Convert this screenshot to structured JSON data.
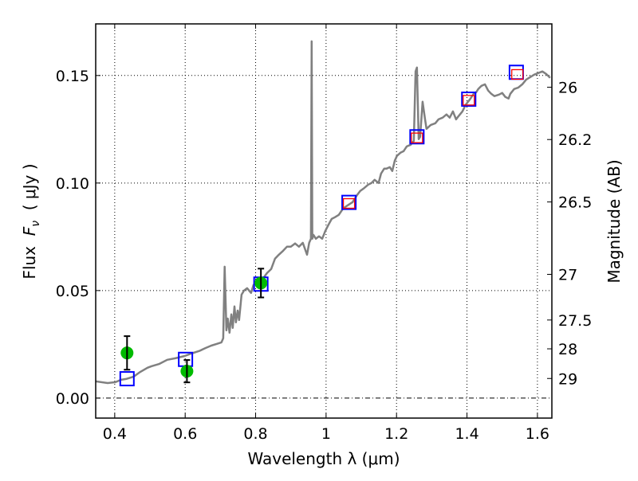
{
  "chart_data": {
    "type": "line",
    "xlabel": "Wavelength  λ (μm)",
    "ylabel": "Flux  F_ν  ( μJy )",
    "ylabel_parts": {
      "pre": "Flux  ",
      "var": "F",
      "sub": "ν",
      "post": "  ( μJy )"
    },
    "ylabel_right": "Magnitude (AB)",
    "xlim": [
      0.346,
      1.641
    ],
    "ylim": [
      -0.0093,
      0.174
    ],
    "grid": true,
    "xticks": [
      0.4,
      0.6,
      0.8,
      1.0,
      1.2,
      1.4,
      1.6
    ],
    "xtick_labels": [
      "0.4",
      "0.6",
      "0.8",
      "1",
      "1.2",
      "1.4",
      "1.6"
    ],
    "yticks": [
      0.0,
      0.05,
      0.1,
      0.15
    ],
    "ytick_labels": [
      "0.00",
      "0.05",
      "0.10",
      "0.15"
    ],
    "right_ticks_mag": [
      26,
      26.2,
      26.5,
      27,
      27.5,
      28,
      29
    ],
    "right_tick_labels": [
      "26",
      "26.2",
      "26.5",
      "27",
      "27.5",
      "28",
      "29"
    ],
    "colors": {
      "spectrum": "#808080",
      "model": "#0000ff",
      "model_inner": "#ff0000",
      "observed": "#00bb00",
      "errorbar": "#000000"
    },
    "series": [
      {
        "name": "spectrum",
        "kind": "line",
        "x": [
          0.346,
          0.38,
          0.402,
          0.418,
          0.432,
          0.454,
          0.47,
          0.493,
          0.504,
          0.527,
          0.549,
          0.572,
          0.599,
          0.617,
          0.64,
          0.658,
          0.674,
          0.69,
          0.703,
          0.708,
          0.712,
          0.717,
          0.721,
          0.726,
          0.731,
          0.735,
          0.74,
          0.744,
          0.749,
          0.753,
          0.76,
          0.767,
          0.776,
          0.787,
          0.794,
          0.803,
          0.821,
          0.832,
          0.844,
          0.855,
          0.866,
          0.878,
          0.889,
          0.9,
          0.912,
          0.923,
          0.934,
          0.946,
          0.952,
          0.957,
          0.959,
          0.961,
          0.964,
          0.971,
          0.98,
          0.989,
          0.998,
          1.007,
          1.016,
          1.025,
          1.036,
          1.048,
          1.061,
          1.075,
          1.088,
          1.097,
          1.106,
          1.12,
          1.129,
          1.138,
          1.149,
          1.156,
          1.165,
          1.172,
          1.181,
          1.188,
          1.195,
          1.201,
          1.211,
          1.22,
          1.229,
          1.24,
          1.249,
          1.254,
          1.258,
          1.263,
          1.267,
          1.274,
          1.281,
          1.285,
          1.297,
          1.31,
          1.319,
          1.331,
          1.342,
          1.351,
          1.36,
          1.369,
          1.376,
          1.387,
          1.396,
          1.41,
          1.419,
          1.426,
          1.432,
          1.441,
          1.451,
          1.46,
          1.469,
          1.478,
          1.491,
          1.5,
          1.509,
          1.518,
          1.523,
          1.534,
          1.546,
          1.557,
          1.568,
          1.58,
          1.591,
          1.602,
          1.614,
          1.625,
          1.636
        ],
        "y": [
          0.0078,
          0.007,
          0.0074,
          0.0085,
          0.0089,
          0.01,
          0.0119,
          0.0141,
          0.0148,
          0.0159,
          0.0178,
          0.0185,
          0.0196,
          0.0207,
          0.0219,
          0.0233,
          0.0244,
          0.0252,
          0.0259,
          0.0278,
          0.0611,
          0.0315,
          0.037,
          0.0304,
          0.0389,
          0.0326,
          0.0426,
          0.0352,
          0.0407,
          0.0363,
          0.0481,
          0.05,
          0.0511,
          0.0489,
          0.0526,
          0.0537,
          0.0556,
          0.0581,
          0.06,
          0.0648,
          0.0667,
          0.0685,
          0.0704,
          0.0704,
          0.0719,
          0.0704,
          0.0722,
          0.0667,
          0.0722,
          0.0741,
          0.1659,
          0.0741,
          0.0759,
          0.0741,
          0.0752,
          0.0741,
          0.0778,
          0.0807,
          0.0833,
          0.0841,
          0.0852,
          0.0881,
          0.0896,
          0.0911,
          0.0944,
          0.0963,
          0.0974,
          0.0993,
          0.1,
          0.1015,
          0.1,
          0.1044,
          0.1067,
          0.1067,
          0.1074,
          0.1056,
          0.1104,
          0.1126,
          0.1141,
          0.1148,
          0.117,
          0.1178,
          0.1196,
          0.1519,
          0.1537,
          0.1204,
          0.1215,
          0.1378,
          0.1296,
          0.1252,
          0.127,
          0.1278,
          0.1296,
          0.1304,
          0.1319,
          0.1304,
          0.1333,
          0.1296,
          0.1311,
          0.1333,
          0.1363,
          0.1393,
          0.1415,
          0.1422,
          0.1437,
          0.1452,
          0.1459,
          0.143,
          0.1415,
          0.1404,
          0.1411,
          0.1419,
          0.14,
          0.1393,
          0.1415,
          0.1437,
          0.1444,
          0.1459,
          0.1481,
          0.1493,
          0.1504,
          0.1511,
          0.1519,
          0.1507,
          0.1489
        ]
      },
      {
        "name": "model-photometry",
        "kind": "open-square",
        "x": [
          0.435,
          0.601,
          0.815,
          1.065,
          1.258,
          1.405,
          1.54
        ],
        "y": [
          0.009,
          0.018,
          0.053,
          0.091,
          0.1215,
          0.139,
          0.1515
        ]
      },
      {
        "name": "model-photometry-inner",
        "kind": "open-square-small",
        "x": [
          1.065,
          1.258,
          1.405,
          1.543
        ],
        "y": [
          0.0905,
          0.121,
          0.1385,
          0.1505
        ]
      },
      {
        "name": "observed-photometry",
        "kind": "errorbar-circle",
        "x": [
          0.435,
          0.605,
          0.815
        ],
        "y": [
          0.021,
          0.0125,
          0.0535
        ],
        "yerr": [
          0.0078,
          0.0052,
          0.0067
        ]
      }
    ]
  }
}
